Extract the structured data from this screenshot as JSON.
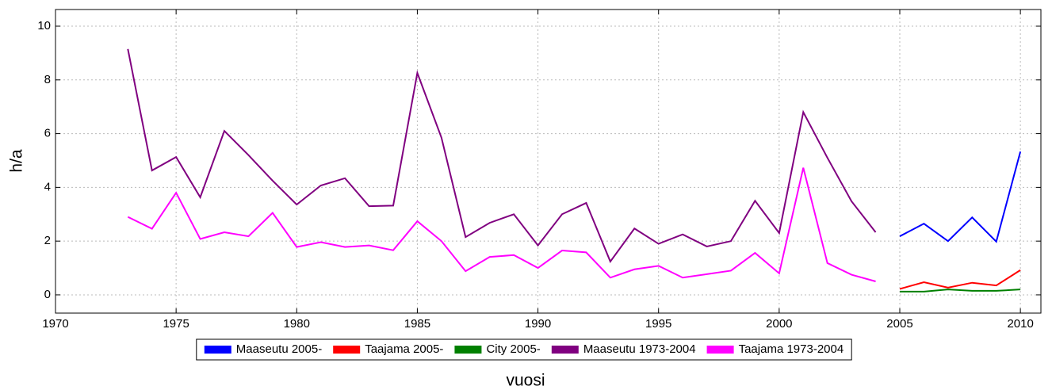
{
  "chart_data": {
    "type": "line",
    "xlabel": "vuosi",
    "ylabel": "h/a",
    "x": [
      1973,
      1974,
      1975,
      1976,
      1977,
      1978,
      1979,
      1980,
      1981,
      1982,
      1983,
      1984,
      1985,
      1986,
      1987,
      1988,
      1989,
      1990,
      1991,
      1992,
      1993,
      1994,
      1995,
      1996,
      1997,
      1998,
      1999,
      2000,
      2001,
      2002,
      2003,
      2004,
      2005,
      2006,
      2007,
      2008,
      2009,
      2010
    ],
    "series": [
      {
        "name": "Maaseutu 2005-",
        "color": "#0000ff",
        "values": [
          null,
          null,
          null,
          null,
          null,
          null,
          null,
          null,
          null,
          null,
          null,
          null,
          null,
          null,
          null,
          null,
          null,
          null,
          null,
          null,
          null,
          null,
          null,
          null,
          null,
          null,
          null,
          null,
          null,
          null,
          null,
          null,
          2.18,
          2.65,
          2.0,
          2.88,
          1.98,
          5.33
        ]
      },
      {
        "name": "Taajama 2005-",
        "color": "#ff0000",
        "values": [
          null,
          null,
          null,
          null,
          null,
          null,
          null,
          null,
          null,
          null,
          null,
          null,
          null,
          null,
          null,
          null,
          null,
          null,
          null,
          null,
          null,
          null,
          null,
          null,
          null,
          null,
          null,
          null,
          null,
          null,
          null,
          null,
          0.22,
          0.47,
          0.27,
          0.45,
          0.35,
          0.92
        ]
      },
      {
        "name": "City 2005-",
        "color": "#008000",
        "values": [
          null,
          null,
          null,
          null,
          null,
          null,
          null,
          null,
          null,
          null,
          null,
          null,
          null,
          null,
          null,
          null,
          null,
          null,
          null,
          null,
          null,
          null,
          null,
          null,
          null,
          null,
          null,
          null,
          null,
          null,
          null,
          null,
          0.12,
          0.12,
          0.2,
          0.15,
          0.15,
          0.2
        ]
      },
      {
        "name": "Maaseutu 1973-2004",
        "color": "#800080",
        "values": [
          9.15,
          4.63,
          5.13,
          3.63,
          6.1,
          5.2,
          4.25,
          3.36,
          4.07,
          4.34,
          3.3,
          3.32,
          8.26,
          5.85,
          2.15,
          2.68,
          3.0,
          1.84,
          3.0,
          3.42,
          1.24,
          2.47,
          1.9,
          2.25,
          1.8,
          2.0,
          3.5,
          2.3,
          6.8,
          5.1,
          3.48,
          2.33,
          null,
          null,
          null,
          null,
          null,
          null
        ]
      },
      {
        "name": "Taajama 1973-2004",
        "color": "#ff00ff",
        "values": [
          2.9,
          2.46,
          3.8,
          2.08,
          2.33,
          2.18,
          3.05,
          1.78,
          1.96,
          1.78,
          1.84,
          1.66,
          2.74,
          2.0,
          0.88,
          1.41,
          1.48,
          1.0,
          1.65,
          1.58,
          0.64,
          0.95,
          1.08,
          0.64,
          0.77,
          0.9,
          1.56,
          0.8,
          4.73,
          1.18,
          0.75,
          0.5,
          null,
          null,
          null,
          null,
          null,
          null
        ]
      }
    ],
    "xlim": [
      1970,
      2010.85
    ],
    "xticks": [
      1970,
      1975,
      1980,
      1985,
      1990,
      1995,
      2000,
      2005,
      2010
    ],
    "ylim": [
      -0.68,
      10.62
    ],
    "yticks": [
      0,
      2,
      4,
      6,
      8,
      10
    ],
    "grid": true,
    "legend": "bottom"
  }
}
